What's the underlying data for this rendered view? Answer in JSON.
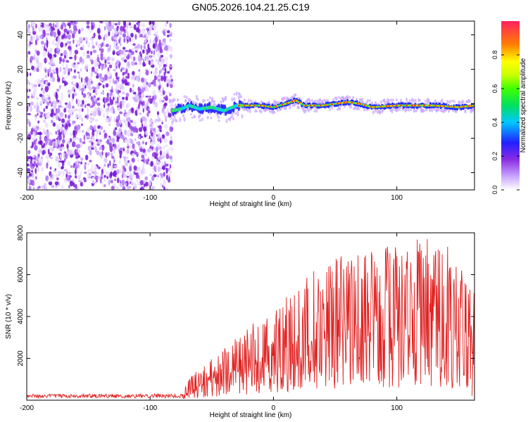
{
  "title": "GN05.2026.104.21.25.C19",
  "chart_data": [
    {
      "type": "heatmap",
      "name": "spectrogram",
      "xlabel": "Height of straight line (km)",
      "ylabel": "Frequency (Hz)",
      "xlim": [
        -200,
        163
      ],
      "ylim": [
        -50,
        48
      ],
      "xticks": [
        -200,
        -100,
        0,
        100
      ],
      "yticks": [
        -40,
        -20,
        0,
        20,
        40
      ],
      "noise_region_x": [
        -200,
        -82
      ],
      "signal_track": [
        {
          "x": -82,
          "y": -4
        },
        {
          "x": -75,
          "y": -3
        },
        {
          "x": -68,
          "y": -1
        },
        {
          "x": -60,
          "y": -3
        },
        {
          "x": -50,
          "y": -2
        },
        {
          "x": -40,
          "y": -4
        },
        {
          "x": -30,
          "y": -1
        },
        {
          "x": -20,
          "y": -1
        },
        {
          "x": -10,
          "y": -1
        },
        {
          "x": 0,
          "y": -2
        },
        {
          "x": 10,
          "y": 0
        },
        {
          "x": 18,
          "y": 2
        },
        {
          "x": 25,
          "y": -1
        },
        {
          "x": 40,
          "y": -1
        },
        {
          "x": 60,
          "y": 1
        },
        {
          "x": 70,
          "y": 0
        },
        {
          "x": 80,
          "y": -2
        },
        {
          "x": 100,
          "y": -1
        },
        {
          "x": 130,
          "y": -1
        },
        {
          "x": 150,
          "y": -2
        },
        {
          "x": 163,
          "y": -1
        }
      ],
      "colorbar": {
        "label": "Normalized spectral amplitude",
        "range": [
          0,
          1
        ],
        "ticks": [
          "0.0",
          "0.2",
          "0.4",
          "0.6",
          "0.8"
        ]
      }
    },
    {
      "type": "line",
      "name": "snr",
      "xlabel": "Height of straight line (km)",
      "ylabel": "SNR (10 * v/v)",
      "xlim": [
        -200,
        163
      ],
      "ylim": [
        0,
        8000
      ],
      "xticks": [
        -200,
        -100,
        0,
        100
      ],
      "yticks": [
        2000,
        4000,
        6000,
        8000
      ],
      "color": "#e02020",
      "envelope": [
        {
          "x": -200,
          "y": 300
        },
        {
          "x": -90,
          "y": 300
        },
        {
          "x": -75,
          "y": 300
        },
        {
          "x": -70,
          "y": 1000
        },
        {
          "x": -50,
          "y": 2000
        },
        {
          "x": -30,
          "y": 3000
        },
        {
          "x": -20,
          "y": 3500
        },
        {
          "x": 0,
          "y": 4500
        },
        {
          "x": 20,
          "y": 5600
        },
        {
          "x": 40,
          "y": 6500
        },
        {
          "x": 60,
          "y": 7000
        },
        {
          "x": 80,
          "y": 7200
        },
        {
          "x": 100,
          "y": 7500
        },
        {
          "x": 120,
          "y": 7800
        },
        {
          "x": 140,
          "y": 7600
        },
        {
          "x": 150,
          "y": 6500
        },
        {
          "x": 163,
          "y": 5500
        }
      ]
    }
  ]
}
